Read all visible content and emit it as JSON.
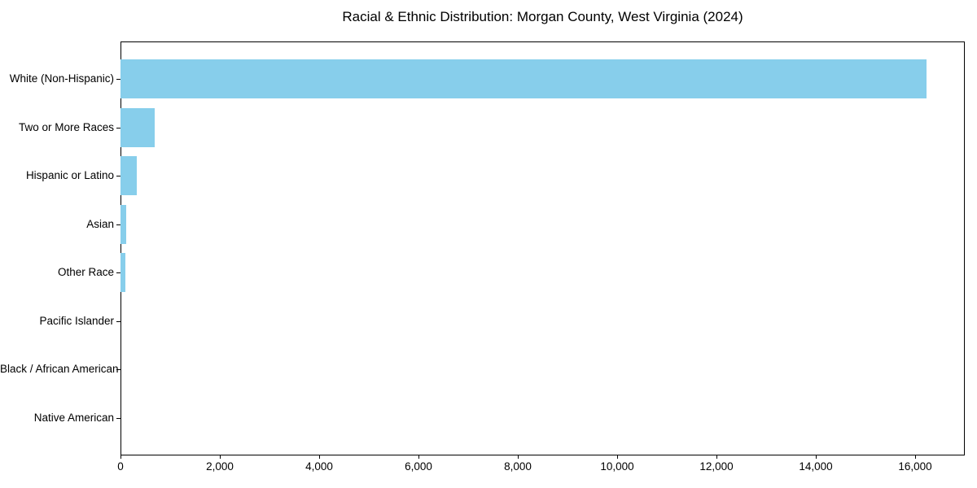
{
  "page": {
    "background_color": "#ffffff",
    "text_color": "#000000"
  },
  "chart_data": {
    "type": "bar",
    "orientation": "horizontal",
    "title": "Racial & Ethnic Distribution: Morgan County, West Virginia (2024)",
    "categories": [
      "White (Non-Hispanic)",
      "Two or More Races",
      "Hispanic or Latino",
      "Asian",
      "Other Race",
      "Pacific Islander",
      "Black / African American",
      "Native American"
    ],
    "values": [
      16230,
      690,
      320,
      115,
      105,
      0,
      0,
      0
    ],
    "xlabel": "",
    "ylabel": "",
    "xlim": [
      0,
      17000
    ],
    "xticks": [
      0,
      2000,
      4000,
      6000,
      8000,
      10000,
      12000,
      14000,
      16000
    ],
    "xtick_labels": [
      "0",
      "2,000",
      "4,000",
      "6,000",
      "8,000",
      "10,000",
      "12,000",
      "14,000",
      "16,000"
    ],
    "bar_color": "#87CEEB",
    "axis_color": "#000000",
    "grid": false,
    "legend": false,
    "bar_height_fraction": 0.8
  }
}
